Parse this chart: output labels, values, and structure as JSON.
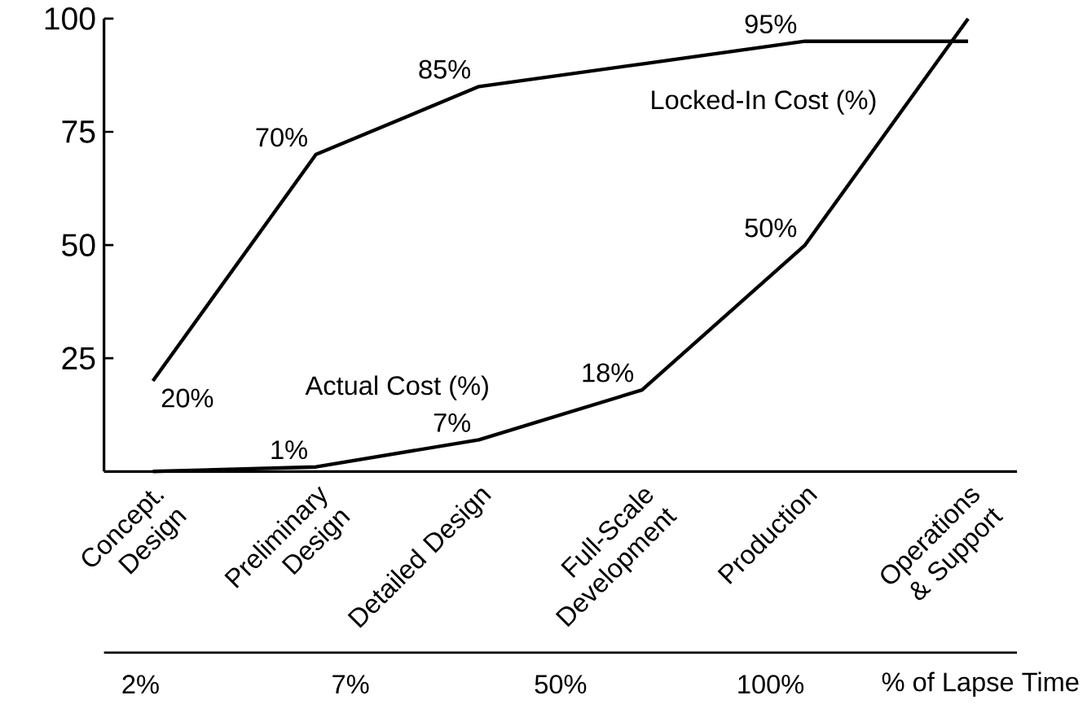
{
  "chart_data": {
    "type": "line",
    "categories": [
      "Concept. Design",
      "Preliminary Design",
      "Detailed Design",
      "Full-Scale Development",
      "Production",
      "Operations & Support"
    ],
    "series": [
      {
        "name": "Locked-In Cost (%)",
        "color": "#000000",
        "values": [
          20,
          70,
          85,
          90,
          95,
          95
        ],
        "value_labels": [
          "20%",
          "70%",
          "85%",
          null,
          "95%",
          null
        ]
      },
      {
        "name": "Actual Cost (%)",
        "color": "#000000",
        "values": [
          0,
          1,
          7,
          18,
          50,
          100
        ],
        "value_labels": [
          null,
          "1%",
          "7%",
          "18%",
          "50%",
          null
        ]
      }
    ],
    "ylim": [
      0,
      100
    ],
    "yticks": [
      25,
      50,
      75,
      100
    ],
    "annotations": [
      "2%",
      "7%",
      "50%",
      "100%",
      "% of Lapse Time"
    ],
    "legend": false,
    "marker": "none",
    "line_style": "solid"
  }
}
